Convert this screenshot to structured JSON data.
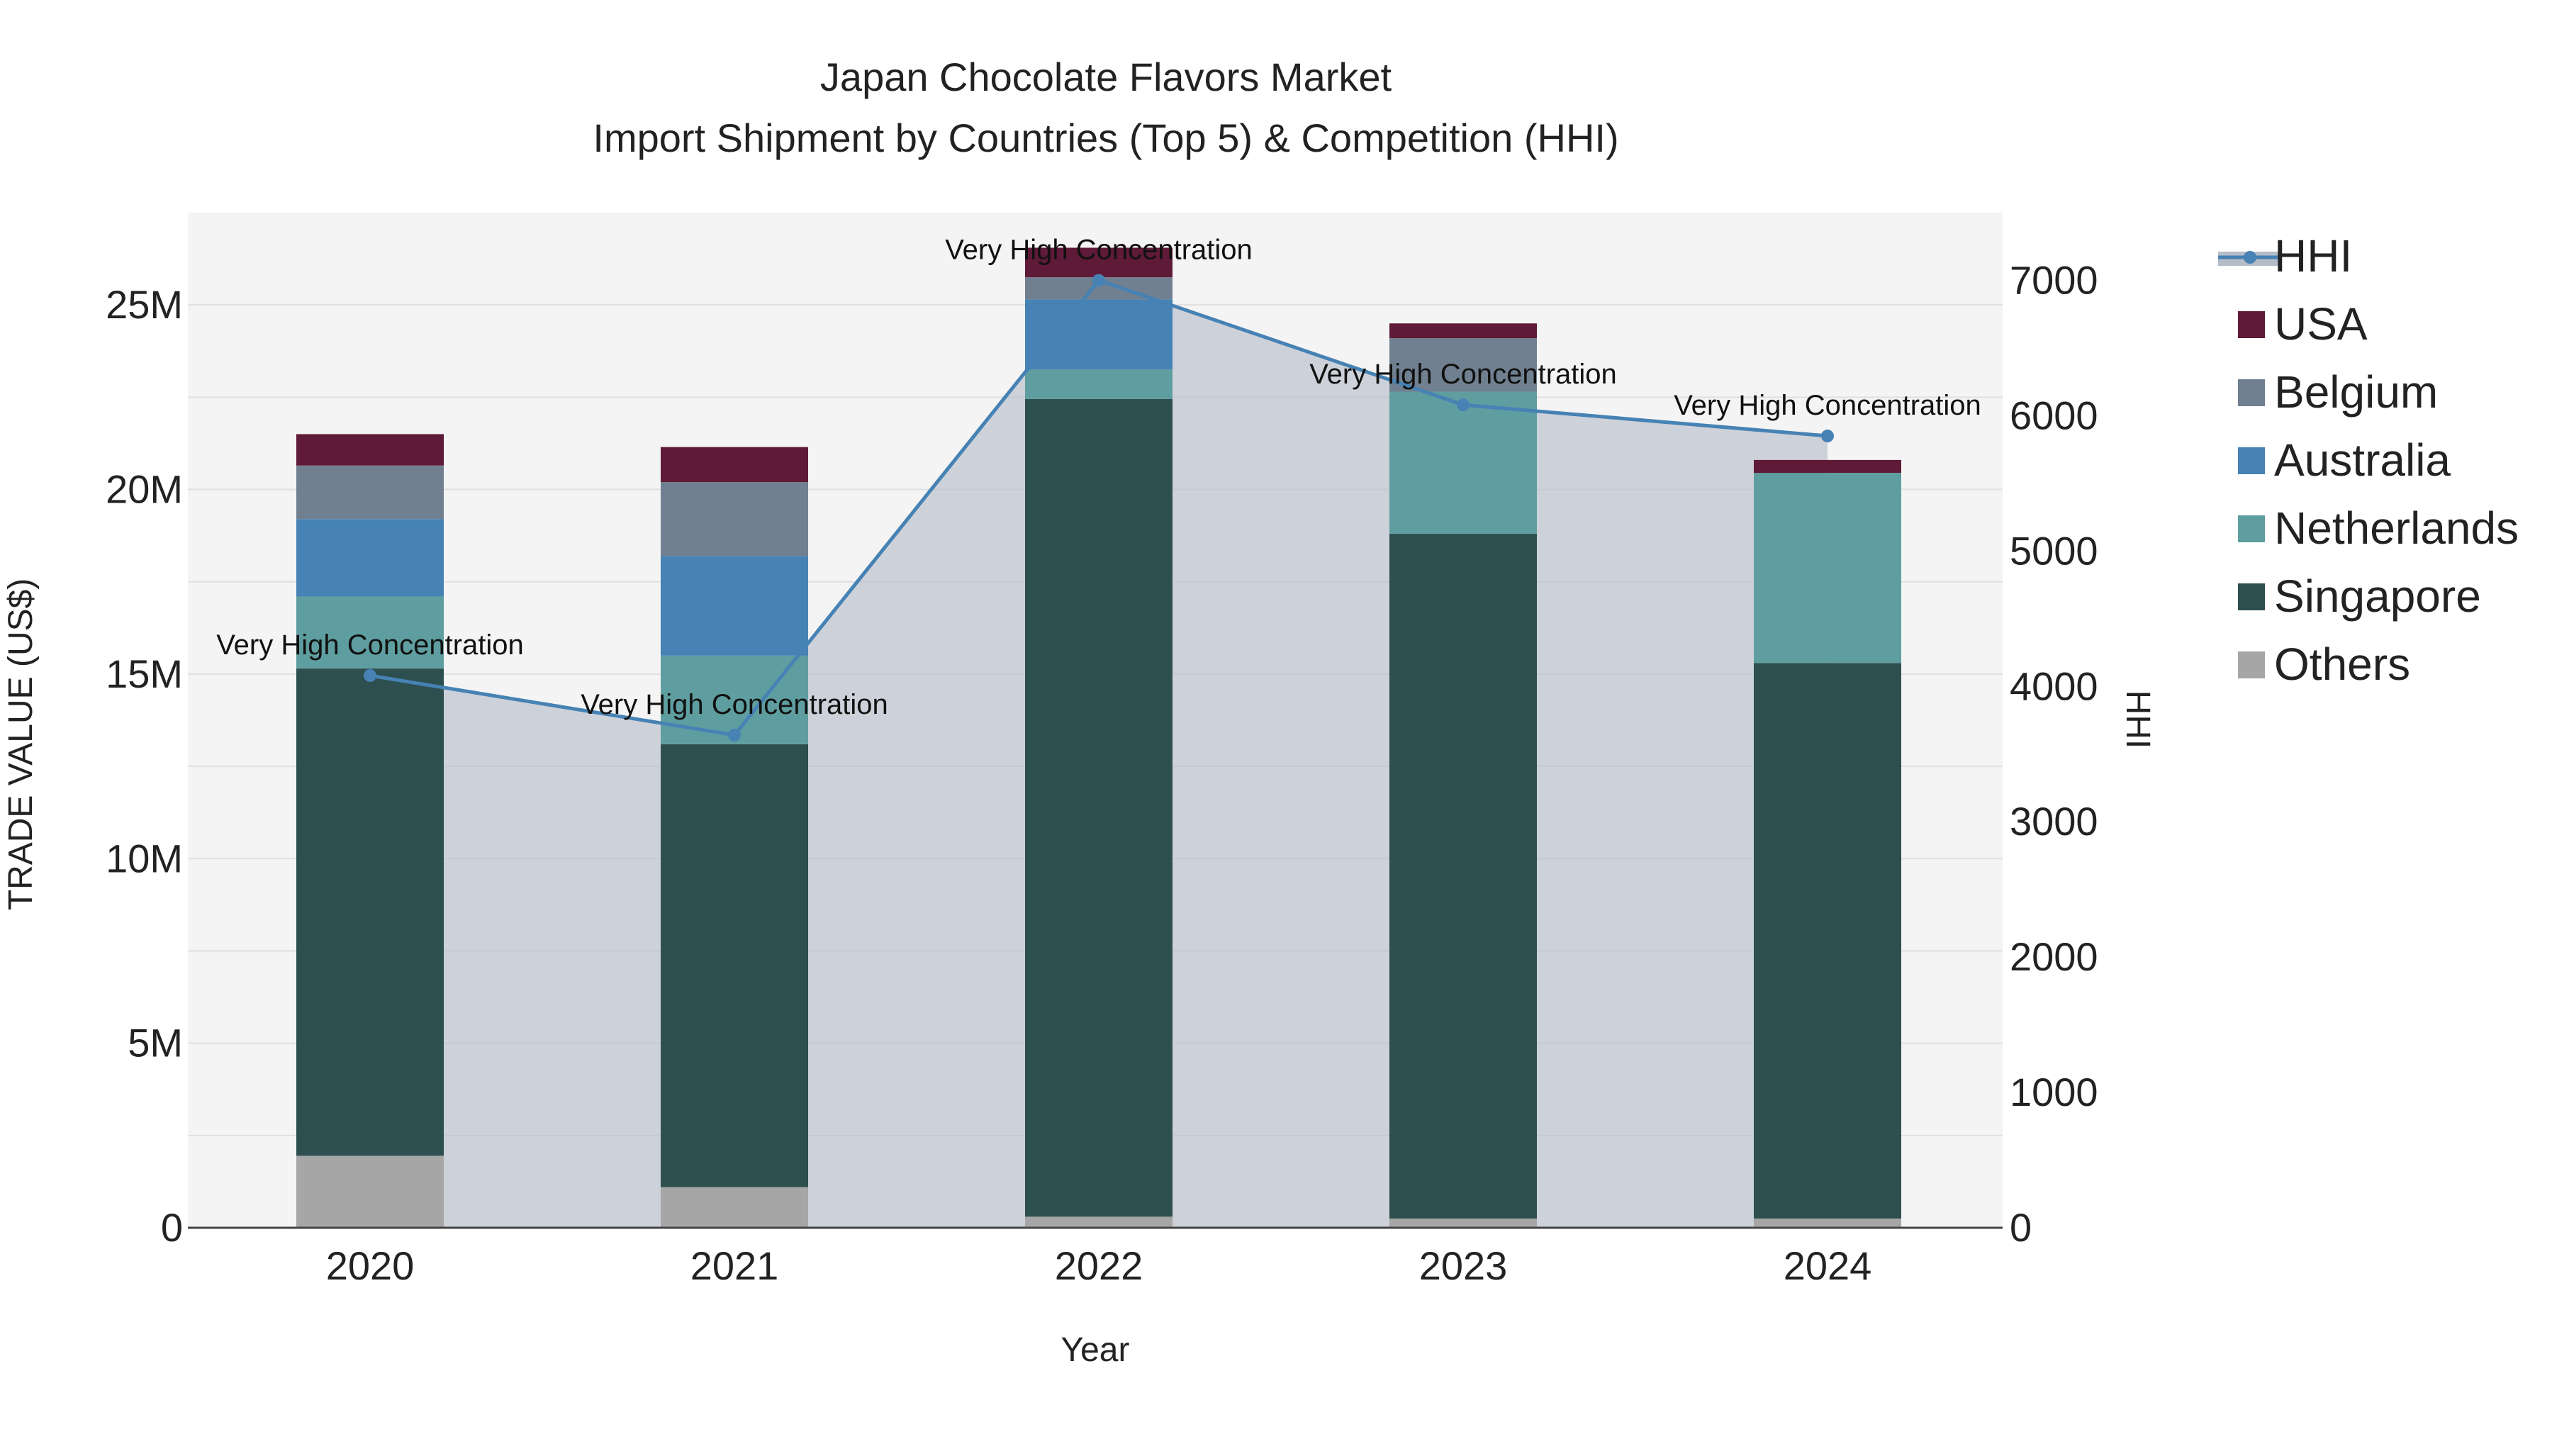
{
  "chart_data": {
    "type": "bar",
    "stacked": true,
    "title": "Japan Chocolate Flavors Market",
    "subtitle": "Import Shipment by Countries (Top 5) & Competition (HHI)",
    "xlabel": "Year",
    "ylabel": "TRADE VALUE (US$)",
    "y2label": "HHI",
    "categories": [
      "2020",
      "2021",
      "2022",
      "2023",
      "2024"
    ],
    "ylim": [
      0,
      27500000
    ],
    "y2lim": [
      0,
      7500
    ],
    "yticks": [
      {
        "value": 0,
        "label": "0"
      },
      {
        "value": 5000000,
        "label": "5M"
      },
      {
        "value": 10000000,
        "label": "10M"
      },
      {
        "value": 15000000,
        "label": "15M"
      },
      {
        "value": 20000000,
        "label": "20M"
      },
      {
        "value": 25000000,
        "label": "25M"
      }
    ],
    "y2ticks": [
      {
        "value": 0,
        "label": "0"
      },
      {
        "value": 1000,
        "label": "1000"
      },
      {
        "value": 2000,
        "label": "2000"
      },
      {
        "value": 3000,
        "label": "3000"
      },
      {
        "value": 4000,
        "label": "4000"
      },
      {
        "value": 5000,
        "label": "5000"
      },
      {
        "value": 6000,
        "label": "6000"
      },
      {
        "value": 7000,
        "label": "7000"
      }
    ],
    "series": [
      {
        "name": "Others",
        "color": "#a6a6a6",
        "values": [
          1950000,
          1100000,
          300000,
          250000,
          250000
        ]
      },
      {
        "name": "Singapore",
        "color": "#2e4f4f",
        "values": [
          13200000,
          12000000,
          22150000,
          18550000,
          15050000
        ]
      },
      {
        "name": "Netherlands",
        "color": "#5f9ea0",
        "values": [
          1950000,
          2400000,
          800000,
          3850000,
          5150000
        ]
      },
      {
        "name": "Australia",
        "color": "#4682b4",
        "values": [
          2100000,
          2700000,
          1900000,
          0,
          0
        ]
      },
      {
        "name": "Belgium",
        "color": "#708090",
        "values": [
          1450000,
          2000000,
          600000,
          1450000,
          0
        ]
      },
      {
        "name": "USA",
        "color": "#5f1a37",
        "values": [
          850000,
          950000,
          800000,
          400000,
          350000
        ]
      }
    ],
    "hhi": {
      "name": "HHI",
      "color": "#4682b4",
      "area_color": "#b4bcc8",
      "values": [
        4080,
        3640,
        7000,
        6080,
        5850
      ],
      "annotations": [
        "Very High Concentration",
        "Very High Concentration",
        "Very High Concentration",
        "Very High Concentration",
        "Very High Concentration"
      ]
    },
    "legend": {
      "placement": "right",
      "entries": [
        "HHI",
        "USA",
        "Belgium",
        "Australia",
        "Netherlands",
        "Singapore",
        "Others"
      ]
    }
  }
}
